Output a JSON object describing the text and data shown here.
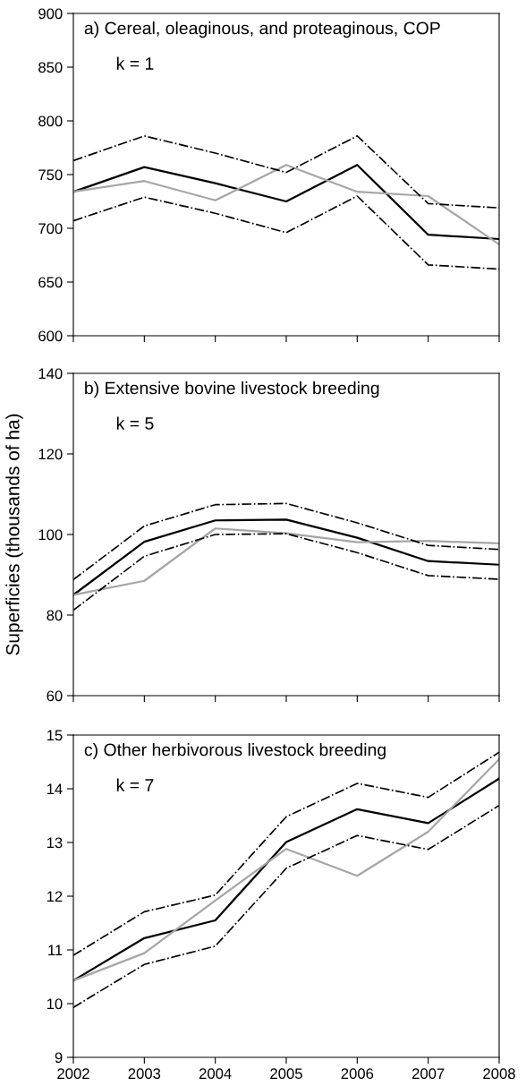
{
  "chart_data": [
    {
      "type": "line",
      "title": "a) Cereal, oleaginous, and proteaginous, COP",
      "annotations": [
        "k = 1"
      ],
      "x": [
        2002,
        2003,
        2004,
        2005,
        2006,
        2007,
        2008
      ],
      "xlim": [
        2002,
        2008
      ],
      "xticks": [
        2002,
        2003,
        2004,
        2005,
        2006,
        2007,
        2008
      ],
      "ylim": [
        600,
        900
      ],
      "yticks": [
        600,
        650,
        700,
        750,
        800,
        850,
        900
      ],
      "tick_labels": "y",
      "grid": false,
      "series": [
        {
          "color": "#000000",
          "line_style": "solid",
          "values": [
            734,
            757,
            742,
            725,
            759,
            694,
            690
          ]
        },
        {
          "color": "#a6a6a6",
          "line_style": "solid",
          "values": [
            734,
            744,
            726,
            759,
            734,
            730,
            685
          ]
        },
        {
          "color": "#000000",
          "line_style": "dashdot",
          "values": [
            763,
            786,
            770,
            752,
            786,
            723,
            719
          ]
        },
        {
          "color": "#000000",
          "line_style": "dashdot",
          "values": [
            707,
            729,
            714,
            696,
            730,
            666,
            662
          ]
        }
      ]
    },
    {
      "type": "line",
      "title": "b) Extensive bovine livestock breeding",
      "ylabel": "Superficies (thousands of ha)",
      "annotations": [
        "k = 5"
      ],
      "x": [
        2002,
        2003,
        2004,
        2005,
        2006,
        2007,
        2008
      ],
      "xlim": [
        2002,
        2008
      ],
      "xticks": [
        2002,
        2003,
        2004,
        2005,
        2006,
        2007,
        2008
      ],
      "ylim": [
        60,
        140
      ],
      "yticks": [
        60,
        80,
        100,
        120,
        140
      ],
      "tick_labels": "y",
      "grid": false,
      "series": [
        {
          "color": "#000000",
          "line_style": "solid",
          "values": [
            85,
            98.2,
            103.5,
            103.7,
            99.2,
            93.4,
            92.5
          ]
        },
        {
          "color": "#a6a6a6",
          "line_style": "solid",
          "values": [
            85,
            88.5,
            101.5,
            100.3,
            98.1,
            98.4,
            97.8
          ]
        },
        {
          "color": "#000000",
          "line_style": "dashdot",
          "values": [
            88.8,
            102.1,
            107.4,
            107.7,
            102.9,
            97.3,
            96.3
          ]
        },
        {
          "color": "#000000",
          "line_style": "dashdot",
          "values": [
            81.2,
            94.6,
            100,
            100.2,
            95.5,
            89.8,
            88.9
          ]
        }
      ]
    },
    {
      "type": "line",
      "title": "c) Other herbivorous livestock breeding",
      "annotations": [
        "k = 7"
      ],
      "x": [
        2002,
        2003,
        2004,
        2005,
        2006,
        2007,
        2008
      ],
      "xlim": [
        2002,
        2008
      ],
      "xticks": [
        2002,
        2003,
        2004,
        2005,
        2006,
        2007,
        2008
      ],
      "ylim": [
        9,
        15
      ],
      "yticks": [
        9,
        10,
        11,
        12,
        13,
        14,
        15
      ],
      "grid": false,
      "series": [
        {
          "color": "#000000",
          "line_style": "solid",
          "values": [
            10.43,
            11.22,
            11.55,
            13.01,
            13.62,
            13.36,
            14.19
          ]
        },
        {
          "color": "#a6a6a6",
          "line_style": "solid",
          "values": [
            10.43,
            10.94,
            11.92,
            12.88,
            12.38,
            13.2,
            14.55
          ]
        },
        {
          "color": "#000000",
          "line_style": "dashdot",
          "values": [
            10.9,
            11.71,
            12.02,
            13.48,
            14.1,
            13.84,
            14.68
          ]
        },
        {
          "color": "#000000",
          "line_style": "dashdot",
          "values": [
            9.93,
            10.73,
            11.07,
            12.52,
            13.13,
            12.87,
            13.69
          ]
        }
      ]
    }
  ]
}
